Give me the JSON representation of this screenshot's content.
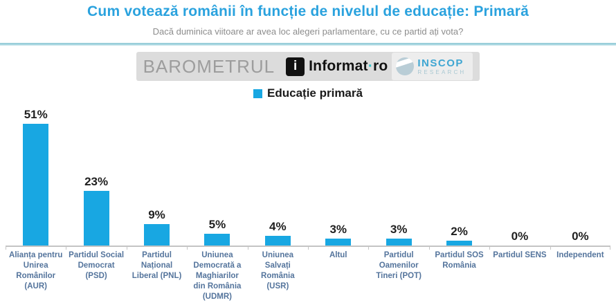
{
  "header": {
    "title": "Cum votează românii în funcție de nivelul de educație: Primară",
    "subtitle": "Dacă duminica viitoare ar avea loc alegeri parlamentare, cu ce partid ați vota?"
  },
  "logos": {
    "barometrul_label": "BAROMETRUL",
    "informat": {
      "icon_letter": "i",
      "name": "Informat",
      "separator": "·",
      "tld": "ro"
    },
    "inscop": {
      "line1": "INSCOP",
      "line2": "RESEARCH"
    }
  },
  "legend": {
    "label": "Educație primară",
    "swatch_color": "#18a7e2"
  },
  "chart_data": {
    "type": "bar",
    "title": "Cum votează românii în funcție de nivelul de educație: Primară",
    "subtitle": "Dacă duminica viitoare ar avea loc alegeri parlamentare, cu ce partid ați vota?",
    "legend_entries": [
      "Educație primară"
    ],
    "legend_position": "top",
    "categories": [
      "Alianța pentru Unirea Românilor (AUR)",
      "Partidul Social Democrat (PSD)",
      "Partidul Național Liberal (PNL)",
      "Uniunea Democrată a Maghiarilor din România (UDMR)",
      "Uniunea Salvați România (USR)",
      "Altul",
      "Partidul Oamenilor Tineri (POT)",
      "Partidul SOS România",
      "Partidul SENS",
      "Independent"
    ],
    "values": [
      51,
      23,
      9,
      5,
      4,
      3,
      3,
      2,
      0,
      0
    ],
    "value_labels": [
      "51%",
      "23%",
      "9%",
      "5%",
      "4%",
      "3%",
      "3%",
      "2%",
      "0%",
      "0%"
    ],
    "bar_color": "#18a7e2",
    "xlabel": "",
    "ylabel": "",
    "ylim": [
      0,
      55
    ],
    "grid": false
  },
  "colors": {
    "title": "#2aa2de",
    "subtitle": "#8c8c8c",
    "axis_label": "#54749c",
    "divider": "#a6d5df",
    "bar": "#18a7e2"
  }
}
